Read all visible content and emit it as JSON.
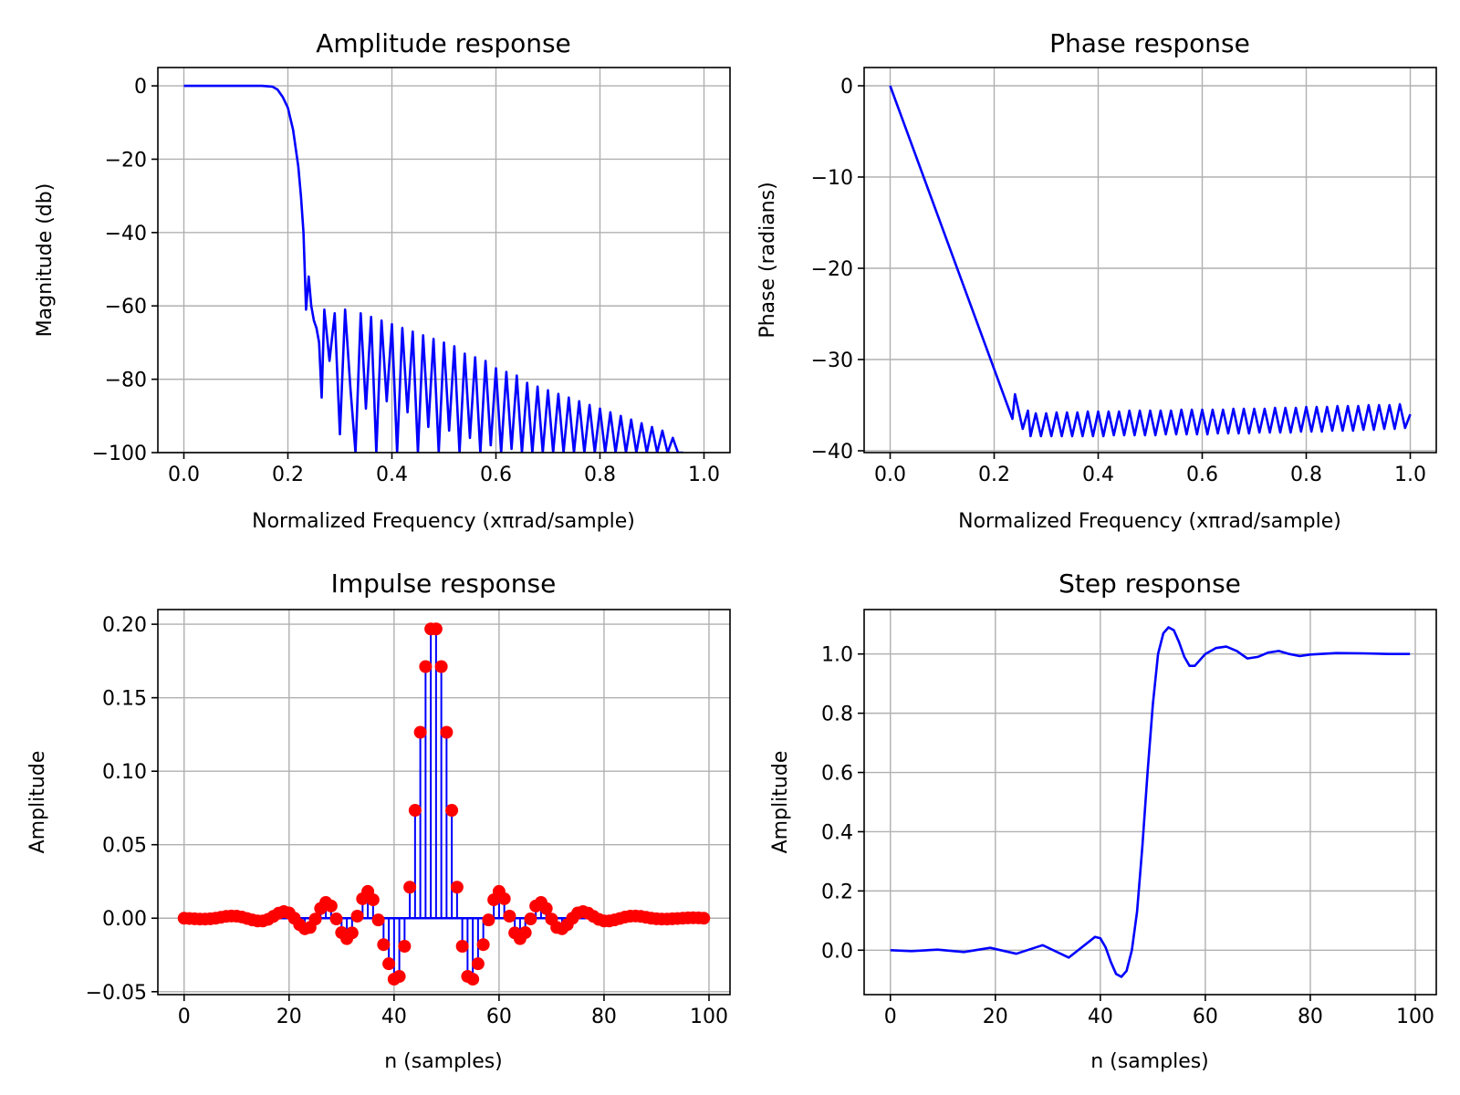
{
  "chart_data": [
    {
      "id": "amplitude",
      "type": "line",
      "title": "Amplitude response",
      "xlabel": "Normalized Frequency (xπrad/sample)",
      "ylabel": "Magnitude (db)",
      "xlim": [
        -0.05,
        1.05
      ],
      "ylim": [
        -100,
        5
      ],
      "xticks": [
        0.0,
        0.2,
        0.4,
        0.6,
        0.8,
        1.0
      ],
      "xtick_labels": [
        "0.0",
        "0.2",
        "0.4",
        "0.6",
        "0.8",
        "1.0"
      ],
      "yticks": [
        0,
        -20,
        -40,
        -60,
        -80,
        -100
      ],
      "ytick_labels": [
        "0",
        "−20",
        "−40",
        "−60",
        "−80",
        "−100"
      ],
      "grid": true,
      "series": [
        {
          "color": "#0000ff",
          "x": [
            0.0,
            0.05,
            0.1,
            0.15,
            0.17,
            0.18,
            0.19,
            0.2,
            0.21,
            0.22,
            0.225,
            0.23,
            0.235,
            0.24,
            0.245,
            0.25,
            0.255,
            0.26,
            0.265,
            0.27,
            0.28,
            0.29,
            0.3,
            0.31,
            0.32,
            0.33,
            0.34,
            0.35,
            0.36,
            0.37,
            0.38,
            0.39,
            0.4,
            0.41,
            0.42,
            0.43,
            0.44,
            0.45,
            0.46,
            0.47,
            0.48,
            0.49,
            0.5,
            0.51,
            0.52,
            0.53,
            0.54,
            0.55,
            0.56,
            0.57,
            0.58,
            0.59,
            0.6,
            0.61,
            0.62,
            0.63,
            0.64,
            0.65,
            0.66,
            0.67,
            0.68,
            0.69,
            0.7,
            0.71,
            0.72,
            0.73,
            0.74,
            0.75,
            0.76,
            0.77,
            0.78,
            0.79,
            0.8,
            0.81,
            0.82,
            0.83,
            0.84,
            0.85,
            0.86,
            0.87,
            0.88,
            0.89,
            0.9,
            0.91,
            0.92,
            0.93,
            0.94,
            0.95,
            0.96
          ],
          "y": [
            0,
            0,
            0,
            0,
            -0.2,
            -1,
            -3,
            -6,
            -12,
            -22,
            -30,
            -40,
            -61,
            -52,
            -60,
            -64,
            -66,
            -70,
            -85,
            -61,
            -75,
            -62,
            -95,
            -61,
            -82,
            -100,
            -62,
            -88,
            -63,
            -100,
            -64,
            -86,
            -65,
            -100,
            -66,
            -89,
            -67,
            -100,
            -68,
            -93,
            -69,
            -100,
            -70,
            -94,
            -71,
            -100,
            -73,
            -96,
            -74,
            -100,
            -75,
            -98,
            -77,
            -100,
            -78,
            -99,
            -79,
            -100,
            -81,
            -100,
            -82,
            -100,
            -83,
            -100,
            -84,
            -100,
            -85,
            -100,
            -86,
            -100,
            -87,
            -100,
            -88,
            -100,
            -89,
            -100,
            -90,
            -100,
            -91,
            -100,
            -92,
            -100,
            -93,
            -100,
            -94,
            -100,
            -96,
            -100,
            -100
          ]
        }
      ]
    },
    {
      "id": "phase",
      "type": "line",
      "title": "Phase response",
      "xlabel": "Normalized Frequency (xπrad/sample)",
      "ylabel": "Phase (radians)",
      "xlim": [
        -0.05,
        1.05
      ],
      "ylim": [
        -40.2,
        2
      ],
      "xticks": [
        0.0,
        0.2,
        0.4,
        0.6,
        0.8,
        1.0
      ],
      "xtick_labels": [
        "0.0",
        "0.2",
        "0.4",
        "0.6",
        "0.8",
        "1.0"
      ],
      "yticks": [
        0,
        -10,
        -20,
        -30,
        -40
      ],
      "ytick_labels": [
        "0",
        "−10",
        "−20",
        "−30",
        "−40"
      ],
      "grid": true,
      "series": [
        {
          "color": "#0000ff",
          "x": [
            0.0,
            0.235,
            0.24,
            0.255,
            0.265,
            0.27,
            0.28,
            0.29,
            0.3,
            0.31,
            0.32,
            0.33,
            0.34,
            0.35,
            0.36,
            0.37,
            0.38,
            0.39,
            0.4,
            0.41,
            0.42,
            0.43,
            0.44,
            0.45,
            0.46,
            0.47,
            0.48,
            0.49,
            0.5,
            0.51,
            0.52,
            0.53,
            0.54,
            0.55,
            0.56,
            0.57,
            0.58,
            0.59,
            0.6,
            0.61,
            0.62,
            0.63,
            0.64,
            0.65,
            0.66,
            0.67,
            0.68,
            0.69,
            0.7,
            0.71,
            0.72,
            0.73,
            0.74,
            0.75,
            0.76,
            0.77,
            0.78,
            0.79,
            0.8,
            0.81,
            0.82,
            0.83,
            0.84,
            0.85,
            0.86,
            0.87,
            0.88,
            0.89,
            0.9,
            0.91,
            0.92,
            0.93,
            0.94,
            0.95,
            0.96,
            0.97,
            0.98,
            0.99,
            1.0
          ],
          "y": [
            0,
            -36.5,
            -33.8,
            -37.6,
            -35.6,
            -38.4,
            -35.9,
            -38.4,
            -35.9,
            -38.4,
            -35.8,
            -38.4,
            -35.8,
            -38.4,
            -35.8,
            -38.4,
            -35.7,
            -38.4,
            -35.7,
            -38.4,
            -35.7,
            -38.3,
            -35.7,
            -38.3,
            -35.6,
            -38.3,
            -35.6,
            -38.3,
            -35.6,
            -38.3,
            -35.6,
            -38.2,
            -35.6,
            -38.2,
            -35.5,
            -38.2,
            -35.5,
            -38.2,
            -35.5,
            -38.2,
            -35.5,
            -38.1,
            -35.5,
            -38.1,
            -35.4,
            -38.1,
            -35.4,
            -38.1,
            -35.4,
            -38.0,
            -35.4,
            -38.0,
            -35.3,
            -38.0,
            -35.3,
            -38.0,
            -35.3,
            -37.9,
            -35.2,
            -37.9,
            -35.2,
            -37.9,
            -35.2,
            -37.8,
            -35.1,
            -37.8,
            -35.1,
            -37.8,
            -35.1,
            -37.7,
            -35.0,
            -37.7,
            -35.0,
            -37.6,
            -35.0,
            -37.6,
            -34.9,
            -37.5,
            -36.0
          ]
        }
      ]
    },
    {
      "id": "impulse",
      "type": "scatter",
      "title": "Impulse response",
      "xlabel": "n (samples)",
      "ylabel": "Amplitude",
      "xlim": [
        -5,
        104
      ],
      "ylim": [
        -0.052,
        0.21
      ],
      "xticks": [
        0,
        20,
        40,
        60,
        80,
        100
      ],
      "xtick_labels": [
        "0",
        "20",
        "40",
        "60",
        "80",
        "100"
      ],
      "yticks": [
        0.2,
        0.15,
        0.1,
        0.05,
        0.0,
        -0.05
      ],
      "ytick_labels": [
        "0.20",
        "0.15",
        "0.10",
        "0.05",
        "0.00",
        "−0.05"
      ],
      "grid": true,
      "stem_color": "#0000ff",
      "marker_color": "#ff0000",
      "values": [
        0.0,
        -0.0002,
        -0.0004,
        -0.0006,
        -0.0006,
        -0.0004,
        0.0,
        0.0006,
        0.0012,
        0.0015,
        0.0014,
        0.0008,
        -0.0002,
        -0.0012,
        -0.0019,
        -0.0019,
        -0.0008,
        0.0012,
        0.0034,
        0.0045,
        0.0036,
        0.0,
        -0.0044,
        -0.0072,
        -0.0063,
        -0.0006,
        0.0066,
        0.0107,
        0.0083,
        -0.0005,
        -0.0098,
        -0.0139,
        -0.01,
        0.0014,
        0.0132,
        0.0182,
        0.0125,
        -0.0012,
        -0.018,
        -0.031,
        -0.0415,
        -0.0396,
        -0.0191,
        0.0211,
        0.0734,
        0.1265,
        0.1712,
        0.1968,
        0.1968,
        0.1712,
        0.1265,
        0.0734,
        0.0211,
        -0.0191,
        -0.0396,
        -0.0415,
        -0.031,
        -0.018,
        -0.0012,
        0.0125,
        0.0182,
        0.0132,
        0.0014,
        -0.01,
        -0.0139,
        -0.0098,
        -0.0005,
        0.0083,
        0.0107,
        0.0066,
        -0.0006,
        -0.0063,
        -0.0072,
        -0.0044,
        0.0,
        0.0036,
        0.0045,
        0.0034,
        0.0012,
        -0.0008,
        -0.0019,
        -0.0019,
        -0.0012,
        -0.0002,
        0.0008,
        0.0014,
        0.0015,
        0.0012,
        0.0006,
        0.0,
        -0.0004,
        -0.0006,
        -0.0006,
        -0.0004,
        -0.0002,
        0.0,
        0.0002,
        0.0003,
        0.0002,
        0.0
      ]
    },
    {
      "id": "step",
      "type": "line",
      "title": "Step response",
      "xlabel": "n (samples)",
      "ylabel": "Amplitude",
      "xlim": [
        -5,
        104
      ],
      "ylim": [
        -0.15,
        1.15
      ],
      "xticks": [
        0,
        20,
        40,
        60,
        80,
        100
      ],
      "xtick_labels": [
        "0",
        "20",
        "40",
        "60",
        "80",
        "100"
      ],
      "yticks": [
        1.0,
        0.8,
        0.6,
        0.4,
        0.2,
        0.0
      ],
      "ytick_labels": [
        "1.0",
        "0.8",
        "0.6",
        "0.4",
        "0.2",
        "0.0"
      ],
      "grid": true,
      "series": [
        {
          "color": "#0000ff",
          "x": [
            0,
            4,
            9,
            14,
            19,
            24,
            29,
            34,
            39,
            40,
            41,
            42,
            43,
            44,
            45,
            46,
            47,
            48,
            49,
            50,
            51,
            52,
            53,
            54,
            55,
            56,
            57,
            58,
            59,
            60,
            62,
            64,
            66,
            68,
            70,
            72,
            74,
            76,
            78,
            80,
            85,
            90,
            95,
            99
          ],
          "y": [
            0.0,
            -0.003,
            0.002,
            -0.006,
            0.008,
            -0.012,
            0.017,
            -0.025,
            0.045,
            0.04,
            0.01,
            -0.04,
            -0.08,
            -0.09,
            -0.07,
            0.0,
            0.13,
            0.35,
            0.6,
            0.83,
            1.0,
            1.07,
            1.09,
            1.08,
            1.04,
            0.99,
            0.96,
            0.96,
            0.98,
            1.0,
            1.02,
            1.025,
            1.01,
            0.985,
            0.99,
            1.005,
            1.01,
            1.0,
            0.993,
            0.998,
            1.003,
            1.002,
            1.0,
            1.0
          ]
        }
      ]
    }
  ]
}
